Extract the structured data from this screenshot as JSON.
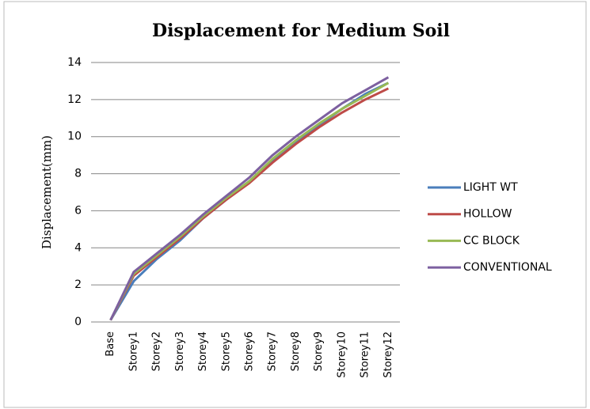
{
  "chart_data": {
    "type": "line",
    "title": "Displacement for Medium Soil",
    "y_label": "Displacement(mm)",
    "categories": [
      "Base",
      "Storey1",
      "Storey2",
      "Storey3",
      "Storey4",
      "Storey5",
      "Storey6",
      "Storey7",
      "Storey8",
      "Storey9",
      "Storey10",
      "Storey11",
      "Storey12"
    ],
    "series": [
      {
        "name": "LIGHT WT",
        "color": "#4a7ebb",
        "values": [
          0.1,
          2.2,
          3.4,
          4.4,
          5.6,
          6.6,
          7.6,
          8.7,
          9.7,
          10.6,
          11.5,
          12.3,
          12.9
        ]
      },
      {
        "name": "HOLLOW",
        "color": "#be4b48",
        "values": [
          0.1,
          2.5,
          3.5,
          4.5,
          5.6,
          6.6,
          7.5,
          8.6,
          9.6,
          10.5,
          11.3,
          12.0,
          12.6
        ]
      },
      {
        "name": "CC BLOCK",
        "color": "#98b954",
        "values": [
          0.1,
          2.6,
          3.6,
          4.6,
          5.7,
          6.7,
          7.6,
          8.8,
          9.8,
          10.7,
          11.5,
          12.2,
          12.9
        ]
      },
      {
        "name": "CONVENTIONAL",
        "color": "#7d60a0",
        "values": [
          0.1,
          2.7,
          3.7,
          4.7,
          5.8,
          6.8,
          7.8,
          9.0,
          10.0,
          10.9,
          11.8,
          12.5,
          13.2
        ]
      }
    ],
    "ylim": [
      0,
      14
    ],
    "yticks": [
      0,
      2,
      4,
      6,
      8,
      10,
      12,
      14
    ],
    "grid": true,
    "legend": "right"
  }
}
